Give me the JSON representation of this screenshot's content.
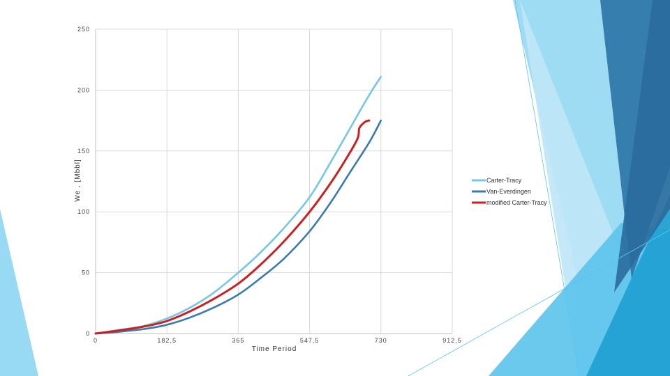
{
  "chart_data": {
    "type": "line",
    "xlabel": "Time Period",
    "ylabel": "We , [Mbbl]",
    "xlim": [
      0,
      912.5
    ],
    "ylim": [
      0,
      250
    ],
    "x_ticks": [
      "0",
      "182,5",
      "365",
      "547,5",
      "730",
      "912,5"
    ],
    "x_tick_values": [
      0,
      182.5,
      365,
      547.5,
      730,
      912.5
    ],
    "y_ticks": [
      "0",
      "50",
      "100",
      "150",
      "200",
      "250"
    ],
    "y_tick_values": [
      0,
      50,
      100,
      150,
      200,
      250
    ],
    "grid": true,
    "legend_position": "right",
    "series": [
      {
        "name": "Carter-Tracy",
        "color": "#76c6e6",
        "x": [
          0,
          60,
          120,
          180,
          240,
          300,
          365,
          420,
          480,
          547.5,
          600,
          650,
          700,
          730
        ],
        "y": [
          0,
          3,
          6,
          12,
          21,
          33,
          50,
          66,
          86,
          112,
          140,
          168,
          196,
          211
        ]
      },
      {
        "name": "Van-Everdingen",
        "color": "#3a7ab0",
        "x": [
          0,
          60,
          120,
          180,
          240,
          300,
          365,
          420,
          480,
          547.5,
          600,
          650,
          700,
          730
        ],
        "y": [
          0,
          1.5,
          3.5,
          7,
          13,
          21,
          32,
          45,
          61,
          84,
          107,
          132,
          157,
          175
        ]
      },
      {
        "name": "modified Carter-Tracy",
        "color": "#cc1f1f",
        "x": [
          0,
          60,
          120,
          180,
          240,
          300,
          365,
          420,
          480,
          547.5,
          600,
          640,
          670,
          675,
          690,
          700
        ],
        "y": [
          0,
          2.5,
          5.5,
          10,
          18,
          28,
          41,
          56,
          75,
          100,
          123,
          143,
          160,
          169,
          174,
          175
        ]
      }
    ]
  },
  "decoration": {
    "shape_colors": [
      "#8dd6f2",
      "#5bc3ec",
      "#2f78aa",
      "#1f9fd2",
      "#bfe6f7"
    ]
  }
}
